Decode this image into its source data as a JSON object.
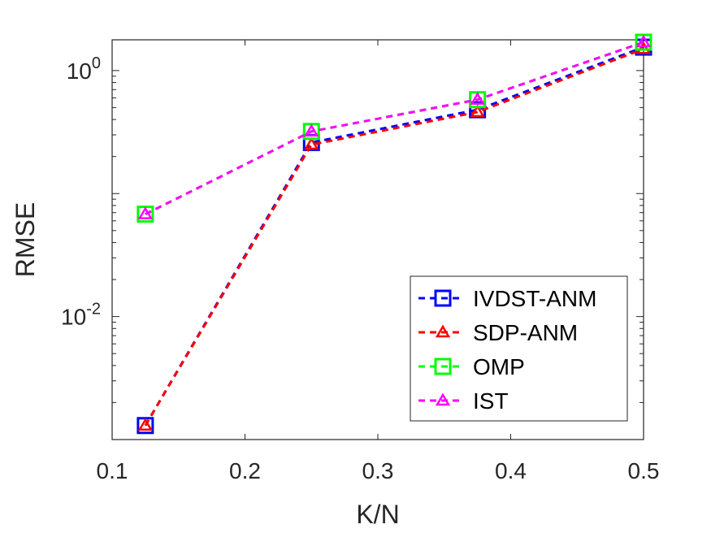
{
  "chart_data": {
    "type": "line",
    "title": "",
    "xlabel": "K/N",
    "ylabel": "RMSE",
    "xlim": [
      0.1,
      0.5
    ],
    "ylim_log10": [
      -3,
      0.25
    ],
    "yscale": "log",
    "grid": false,
    "legend_position": "bottom-right",
    "x_ticks": [
      0.1,
      0.2,
      0.3,
      0.4,
      0.5
    ],
    "x_tick_labels": [
      "0.1",
      "0.2",
      "0.3",
      "0.4",
      "0.5"
    ],
    "y_tick_labels": [
      {
        "value": 1,
        "base": "10",
        "exponent": "0"
      },
      {
        "value": 0.01,
        "base": "10",
        "exponent": "-2"
      }
    ],
    "x": [
      0.125,
      0.25,
      0.375,
      0.5
    ],
    "series": [
      {
        "name": "IVDST-ANM",
        "color": "#0000ff",
        "marker": "square",
        "dash": "8,6",
        "values": [
          0.0013,
          0.26,
          0.48,
          1.55
        ]
      },
      {
        "name": "SDP-ANM",
        "color": "#ff0000",
        "marker": "triangle",
        "dash": "8,6",
        "values": [
          0.0013,
          0.25,
          0.46,
          1.5
        ]
      },
      {
        "name": "OMP",
        "color": "#00ff00",
        "marker": "square",
        "dash": "8,6",
        "values": [
          0.068,
          0.32,
          0.58,
          1.7
        ]
      },
      {
        "name": "IST",
        "color": "#ff00ff",
        "marker": "triangle",
        "dash": "8,6",
        "values": [
          0.068,
          0.32,
          0.58,
          1.7
        ]
      }
    ]
  }
}
